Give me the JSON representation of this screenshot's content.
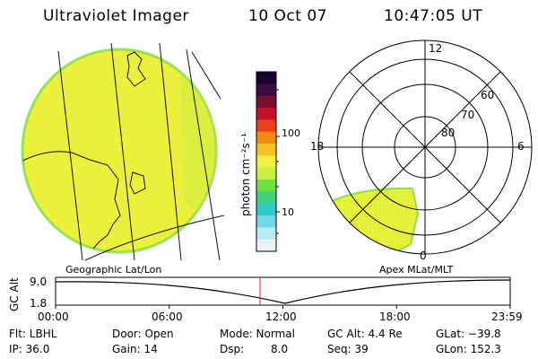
{
  "header": {
    "title": "Ultraviolet Imager",
    "date": "10 Oct 07",
    "time": "10:47:05 UT"
  },
  "colorbar": {
    "label": "photon cm⁻²s⁻¹",
    "ticks": [
      "100",
      "10"
    ],
    "colors": [
      "#1a0030",
      "#3a0a40",
      "#7a1030",
      "#c0102a",
      "#e84018",
      "#f08a10",
      "#f5c020",
      "#f0f040",
      "#c8f040",
      "#70e040",
      "#40d080",
      "#30c8c8",
      "#70d8e8",
      "#b8eaf2",
      "#e8f5f8"
    ]
  },
  "polar": {
    "mlt_labels": [
      "12",
      "18",
      "6",
      "0"
    ],
    "lat_labels": [
      "60",
      "70",
      "80"
    ]
  },
  "map": {
    "left_label": "Geographic Lat/Lon",
    "right_label": "Apex MLat/MLT"
  },
  "timeline": {
    "axis_label": "GC Alt",
    "y_ticks": [
      "9.0",
      "1.8"
    ],
    "x_ticks": [
      "00:00",
      "06:00",
      "12:00",
      "18:00",
      "23:59"
    ],
    "current_time_fraction": 0.4497,
    "marker_color": "#e02020"
  },
  "info": {
    "flt": "Flt: LBHL",
    "ip": "IP: 36.0",
    "door": "Door: Open",
    "gain": "Gain: 14",
    "mode": "Mode: Normal",
    "dsp_label": "Dsp:",
    "dsp_value": "8.0",
    "gcalt": "GC Alt: 4.4 Re",
    "seq": "Seq: 39",
    "glat": "GLat: −39.8",
    "glon": "GLon: 152.3"
  }
}
